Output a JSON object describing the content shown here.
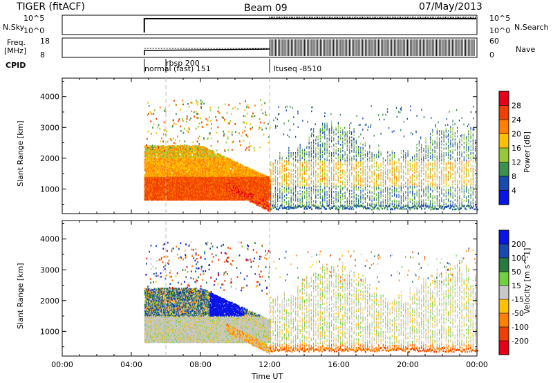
{
  "header": {
    "station": "TIGER (fitACF)",
    "beam": "Beam 09",
    "date": "07/May/2013"
  },
  "nsky_panel": {
    "left_label": "N.Sky",
    "right_label": "N.Search",
    "left_ticks": [
      "10^5",
      "10^0"
    ],
    "right_ticks": [
      "10^5",
      "10^0"
    ]
  },
  "freq_panel": {
    "left_label_line1": "Freq.",
    "left_label_line2": "[MHz]",
    "right_label": "Nave",
    "left_ticks": [
      "18",
      "8"
    ],
    "right_ticks": [
      "60",
      "0"
    ]
  },
  "cpid": {
    "label": "CPID",
    "modes": [
      "rbsp 200",
      "normal (fast) 151",
      "ltuseq -8510"
    ]
  },
  "chart_data": [
    {
      "type": "heatmap",
      "title": "",
      "ylabel": "Slant Range [km]",
      "ylim": [
        200,
        4600
      ],
      "yticks": [
        1000,
        2000,
        3000,
        4000
      ],
      "xlim_hours": [
        0,
        24
      ],
      "xticks": [
        "00:00",
        "04:00",
        "08:00",
        "12:00",
        "16:00",
        "20:00",
        "00:00"
      ],
      "colorbar": {
        "label": "Power [dB]",
        "ticks": [
          "28",
          "24",
          "20",
          "16",
          "12",
          "8",
          "4"
        ],
        "colors": [
          "#e8001a",
          "#f04000",
          "#ff8000",
          "#ffc000",
          "#98c838",
          "#3c9050",
          "#1a4ab0",
          "#0a14e6"
        ]
      }
    },
    {
      "type": "heatmap",
      "title": "",
      "ylabel": "Slant Range [km]",
      "xlabel": "Time UT",
      "ylim": [
        200,
        4600
      ],
      "yticks": [
        1000,
        2000,
        3000,
        4000
      ],
      "xlim_hours": [
        0,
        24
      ],
      "xticks": [
        "00:00",
        "04:00",
        "08:00",
        "12:00",
        "16:00",
        "20:00",
        "00:00"
      ],
      "colorbar": {
        "label": "Velocity [m s^-1]",
        "ticks": [
          "200",
          "100",
          "50",
          "15",
          "-15",
          "-50",
          "-100",
          "-200"
        ],
        "colors": [
          "#0a14e6",
          "#1a4ab0",
          "#2a7a40",
          "#70d040",
          "#c8c8c8",
          "#ffc000",
          "#ff8000",
          "#f04000",
          "#e8001a"
        ]
      }
    }
  ]
}
